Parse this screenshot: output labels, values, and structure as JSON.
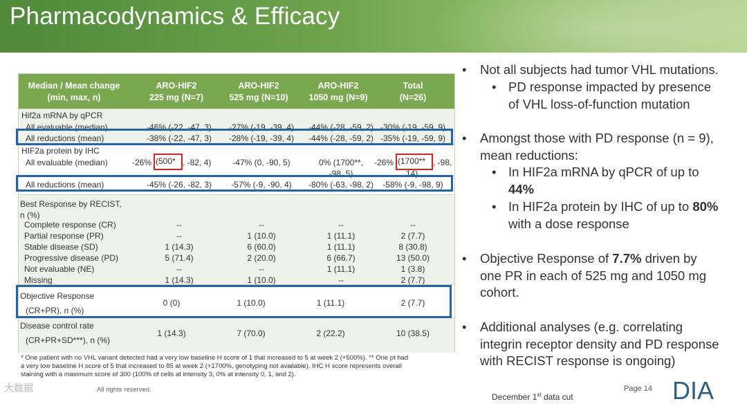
{
  "title": "Pharmacodynamics & Efficacy",
  "table": {
    "header": {
      "col0": [
        "Median / Mean change",
        "(min, max, n)"
      ],
      "col1": [
        "ARO-HIF2",
        "225 mg (N=7)"
      ],
      "col2": [
        "ARO-HIF2",
        "525 mg (N=10)"
      ],
      "col3": [
        "ARO-HIF2",
        "1050 mg (N=9)"
      ],
      "col4": [
        "Total",
        "(N=26)"
      ]
    },
    "mrna": {
      "title": "Hif2a mRNA by qPCR",
      "all_evaluable": {
        "label": "All evaluable (median)",
        "v1": "-46% (-22, -47, 3)",
        "v2": "-27% (-19, -39, 4)",
        "v3": "-44% (-28, -59, 2)",
        "v4": "-30% (-19, -59, 9)"
      },
      "all_reductions": {
        "label": "All reductions (mean)",
        "v1": "-38% (-22, -47, 3)",
        "v2": "-28% (-19, -39, 4)",
        "v3": "-44% (-28, -59, 2)",
        "v4": "-35% (-19, -59, 9)"
      }
    },
    "protein": {
      "title": "HIF2a protein by IHC",
      "all_evaluable": {
        "label": "All evaluable (median)",
        "v1_a": "-26%",
        "v1_b": "(500*",
        "v1_c": ", -82, 4)",
        "v2": "-47% (0, -90, 5)",
        "v3_line1": "0% (1700**,",
        "v3_line2": "-98, 5)",
        "v4_a": "-26%",
        "v4_b": "(1700**",
        "v4_c": ", -98,",
        "v4_line2": "14)"
      },
      "all_reductions": {
        "label": "All reductions (mean)",
        "v1": "-45% (-26, -82, 3)",
        "v2": "-57% (-9, -90, 4)",
        "v3": "-80% (-63, -98, 2)",
        "v4": "-58% (-9, -98, 9)"
      }
    },
    "recist": {
      "title_line1": "Best Response by RECIST,",
      "title_line2": "n (%)",
      "rows": [
        {
          "label": "Complete response (CR)",
          "v1": "--",
          "v2": "--",
          "v3": "--",
          "v4": "--"
        },
        {
          "label": "Partial response (PR)",
          "v1": "--",
          "v2": "1 (10.0)",
          "v3": "1 (11.1)",
          "v4": "2 (7.7)"
        },
        {
          "label": "Stable disease (SD)",
          "v1": "1 (14.3)",
          "v2": "6 (60.0)",
          "v3": "1 (11.1)",
          "v4": "8 (30.8)"
        },
        {
          "label": "Progressive disease (PD)",
          "v1": "5 (71.4)",
          "v2": "2 (20.0)",
          "v3": "6 (66.7)",
          "v4": "13 (50.0)"
        },
        {
          "label": "Not evaluable (NE)",
          "v1": "--",
          "v2": "--",
          "v3": "1 (11.1)",
          "v4": "1 (3.8)"
        },
        {
          "label": "Missing",
          "v1": "1 (14.3)",
          "v2": "1 (10.0)",
          "v3": "--",
          "v4": "2 (7.7)"
        }
      ]
    },
    "objective": {
      "label_line1": "Objective Response",
      "label_line2": "(CR+PR), n (%)",
      "v1": "0 (0)",
      "v2": "1 (10.0)",
      "v3": "1 (11.1)",
      "v4": "2 (7.7)"
    },
    "dcr": {
      "label_line1": "Disease control rate",
      "label_line2": "(CR+PR+SD***), n (%)",
      "v1": "1 (14.3)",
      "v2": "7 (70.0)",
      "v3": "2 (22.2)",
      "v4": "10 (38.5)"
    }
  },
  "footnote": {
    "line1": "* One patient with no VHL variant detected had a very low baseline H score of 1 that increased to 5 at week 2 (+500%).  ** One pt had",
    "line2": "a very low baseline H score of 5 that increased to 85 at week 2 (+1700%, genotyping not available).  IHC H score represents overall",
    "line3": "staining with a maximum score of 300 (100% of cells at intensity 3, 0% at intensity 0, 1, and 2)."
  },
  "copyright": "All rights reserved.",
  "watermark": "大数据",
  "bullets": {
    "b1": "Not all subjects had tumor VHL mutations.",
    "b1_sub1_line1": "PD response impacted by presence",
    "b1_sub1_line2": "of VHL loss-of-function mutation",
    "b2_line1": "Amongst those with PD response (n = 9),",
    "b2_line2": "mean reductions:",
    "b2_sub1_a": "In HIF2a mRNA by qPCR of up to",
    "b2_sub1_b": "44%",
    "b2_sub2_a": "In HIF2a protein by IHC of up to ",
    "b2_sub2_b": "80%",
    "b2_sub2_c": "with a dose response",
    "b3_a": "Objective Response of ",
    "b3_b": "7.7%",
    "b3_c": " driven by",
    "b3_line2": "one PR in each of 525 mg and 1050 mg",
    "b3_line3": "cohort.",
    "b4_line1": "Additional analyses (e.g. correlating",
    "b4_line2": "integrin receptor density and PD response",
    "b4_line3": "with RECIST response is ongoing)",
    "bullet_char": "•"
  },
  "footer": {
    "page": "Page 14",
    "data_cut_a": "December 1",
    "data_cut_sup": "st",
    "data_cut_b": " data cut",
    "logo": "DIA"
  },
  "colors": {
    "header_green": "#79a84e",
    "highlight_blue": "#1e63b4",
    "highlight_red": "#e0201e"
  }
}
